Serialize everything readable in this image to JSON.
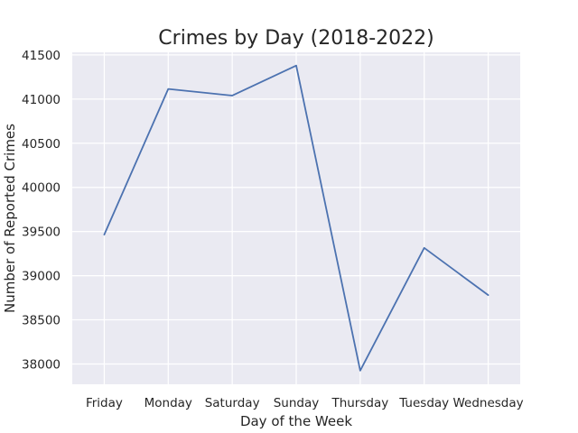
{
  "chart_data": {
    "type": "line",
    "title": "Crimes by Day (2018-2022)",
    "xlabel": "Day of the Week",
    "ylabel": "Number of Reported Crimes",
    "categories": [
      "Friday",
      "Monday",
      "Saturday",
      "Sunday",
      "Thursday",
      "Tuesday",
      "Wednesday"
    ],
    "series": [
      {
        "values": [
          39465,
          41115,
          41040,
          41380,
          37925,
          39315,
          38780
        ],
        "color": "#4c72b0"
      }
    ],
    "ylim": [
      37770,
      41530
    ],
    "yticks": [
      38000,
      38500,
      39000,
      39500,
      40000,
      40500,
      41000,
      41500
    ],
    "grid": true,
    "background": "#eaeaf2"
  }
}
